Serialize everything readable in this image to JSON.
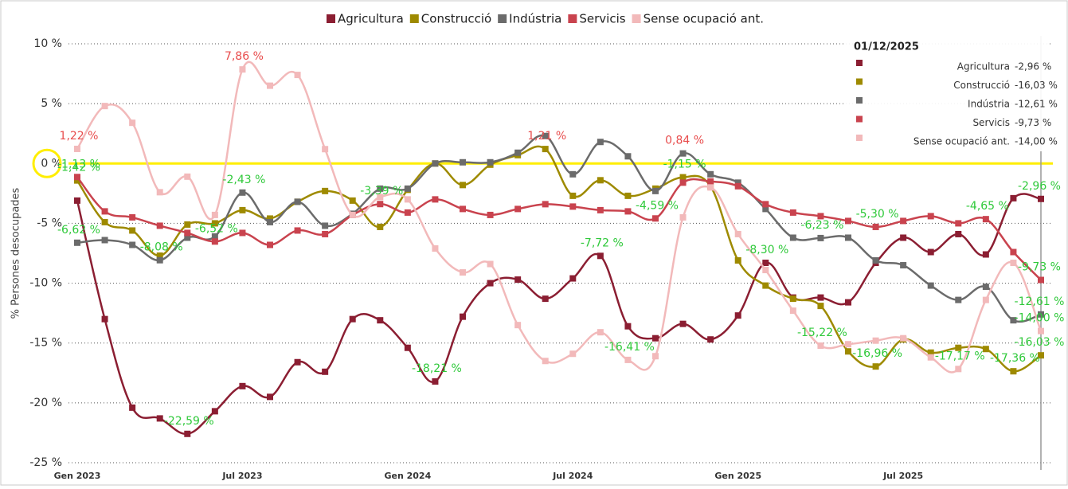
{
  "chart_data": {
    "type": "line",
    "y_label": "% Persones desocupades",
    "categories": [
      "Gen 2023",
      null,
      null,
      null,
      null,
      null,
      "Jul 2023",
      null,
      null,
      null,
      null,
      null,
      "Gen 2024",
      null,
      null,
      null,
      null,
      null,
      "Jul 2024",
      null,
      null,
      null,
      null,
      null,
      "Gen 2025",
      null,
      null,
      null,
      null,
      null,
      "Jul 2025",
      null,
      null,
      null,
      null,
      null
    ],
    "ylim": [
      -25,
      10
    ],
    "yticks": [
      {
        "value": -25,
        "label": "-25 %"
      },
      {
        "value": -20,
        "label": "-20 %"
      },
      {
        "value": -15,
        "label": "-15 %"
      },
      {
        "value": -10,
        "label": "-10 %"
      },
      {
        "value": -5,
        "label": "-5 %"
      },
      {
        "value": 0,
        "label": "0 %"
      },
      {
        "value": 5,
        "label": "5 %"
      },
      {
        "value": 10,
        "label": "10 %"
      }
    ],
    "grid": true,
    "reference_line": {
      "value": 0,
      "color": "#ffee00"
    },
    "legend": "top",
    "tooltip_title": "01/12/2025",
    "series": [
      {
        "name": "Agricultura",
        "color": "#8b1e32",
        "values": [
          -3.1,
          -13.0,
          -20.4,
          -21.3,
          -22.59,
          -20.7,
          -18.6,
          -19.5,
          -16.6,
          -17.4,
          -13.0,
          -13.1,
          -15.4,
          -18.21,
          -12.8,
          -10.0,
          -9.7,
          -11.3,
          -9.6,
          -7.72,
          -13.6,
          -14.6,
          -13.4,
          -14.7,
          -12.7,
          -8.3,
          -11.2,
          -11.2,
          -11.6,
          -8.3,
          -6.2,
          -7.4,
          -5.9,
          -7.6,
          -2.9,
          -2.96
        ],
        "value_labels": [
          null,
          null,
          null,
          null,
          "-22,59 %",
          null,
          null,
          null,
          null,
          null,
          null,
          null,
          null,
          "-18,21 %",
          null,
          null,
          null,
          null,
          null,
          "-7,72 %",
          null,
          null,
          null,
          null,
          null,
          "-8,30 %",
          null,
          null,
          null,
          null,
          null,
          null,
          null,
          null,
          null,
          "-2,96 %"
        ]
      },
      {
        "name": "Construcció",
        "color": "#9e8a00",
        "values": [
          -1.42,
          -4.9,
          -5.6,
          -7.7,
          -5.1,
          -5.0,
          -3.9,
          -4.6,
          -3.2,
          -2.3,
          -3.1,
          -5.3,
          -2.2,
          0.0,
          -1.8,
          -0.1,
          0.7,
          1.21,
          -2.7,
          -1.4,
          -2.7,
          -2.1,
          -1.15,
          -1.9,
          -8.1,
          -10.2,
          -11.3,
          -11.9,
          -15.7,
          -16.96,
          -14.7,
          -15.8,
          -15.4,
          -15.5,
          -17.36,
          -16.03
        ],
        "value_labels": [
          "-1,42 %",
          null,
          null,
          null,
          null,
          null,
          null,
          null,
          null,
          null,
          null,
          null,
          null,
          null,
          null,
          null,
          null,
          "1,21 %",
          null,
          null,
          null,
          null,
          "-1,15 %",
          null,
          null,
          null,
          null,
          null,
          null,
          "-16,96 %",
          null,
          null,
          null,
          null,
          "-17,36 %",
          "-16,03 %"
        ]
      },
      {
        "name": "Indústria",
        "color": "#6b6b6b",
        "values": [
          -6.62,
          -6.4,
          -6.8,
          -8.08,
          -6.2,
          -6.1,
          -2.43,
          -4.9,
          -3.2,
          -5.2,
          -4.2,
          -2.1,
          -2.1,
          0.0,
          0.1,
          0.1,
          0.9,
          2.3,
          -0.9,
          1.8,
          0.6,
          -2.3,
          0.84,
          -0.9,
          -1.6,
          -3.8,
          -6.2,
          -6.23,
          -6.2,
          -8.1,
          -8.5,
          -10.2,
          -11.4,
          -10.3,
          -13.1,
          -12.61
        ],
        "value_labels": [
          "-6,62 %",
          null,
          null,
          "-8,08 %",
          null,
          null,
          "-2,43 %",
          null,
          null,
          null,
          null,
          null,
          null,
          null,
          null,
          null,
          null,
          null,
          null,
          null,
          null,
          null,
          "0,84 %",
          null,
          null,
          null,
          null,
          "-6,23 %",
          null,
          null,
          null,
          null,
          null,
          null,
          null,
          "-12,61 %"
        ]
      },
      {
        "name": "Servicis",
        "color": "#c9434e",
        "values": [
          -1.13,
          -4.0,
          -4.5,
          -5.2,
          -5.8,
          -6.52,
          -5.8,
          -6.8,
          -5.6,
          -5.9,
          -4.3,
          -3.39,
          -4.1,
          -3.0,
          -3.8,
          -4.3,
          -3.8,
          -3.4,
          -3.6,
          -3.9,
          -4.0,
          -4.59,
          -1.6,
          -1.5,
          -1.9,
          -3.4,
          -4.1,
          -4.4,
          -4.8,
          -5.3,
          -4.8,
          -4.4,
          -5.0,
          -4.65,
          -7.4,
          -9.73
        ],
        "value_labels": [
          "-1,13 %",
          null,
          null,
          null,
          null,
          "-6,52 %",
          null,
          null,
          null,
          null,
          null,
          "-3,39 %",
          null,
          null,
          null,
          null,
          null,
          null,
          null,
          null,
          null,
          "-4,59 %",
          null,
          null,
          null,
          null,
          null,
          null,
          null,
          "-5,30 %",
          null,
          null,
          null,
          "-4,65 %",
          null,
          "-9,73 %"
        ]
      },
      {
        "name": "Sense ocupació ant.",
        "color": "#f2b9ba",
        "values": [
          1.22,
          4.8,
          3.4,
          -2.4,
          -1.1,
          -4.3,
          7.86,
          6.5,
          7.4,
          1.2,
          -4.3,
          -2.8,
          -3.0,
          -7.1,
          -9.1,
          -8.4,
          -13.5,
          -16.5,
          -15.9,
          -14.1,
          -16.41,
          -16.1,
          -4.5,
          -2.0,
          -5.9,
          -8.9,
          -12.3,
          -15.22,
          -15.1,
          -14.8,
          -14.6,
          -16.2,
          -17.17,
          -11.4,
          -8.3,
          -14.0
        ],
        "value_labels": [
          "1,22 %",
          null,
          null,
          null,
          null,
          null,
          "7,86 %",
          null,
          null,
          null,
          null,
          null,
          null,
          null,
          null,
          null,
          null,
          null,
          null,
          null,
          "-16,41 %",
          null,
          null,
          null,
          null,
          null,
          null,
          "-15,22 %",
          null,
          null,
          null,
          null,
          "-17,17 %",
          null,
          null,
          "-14,00 %"
        ]
      }
    ]
  }
}
